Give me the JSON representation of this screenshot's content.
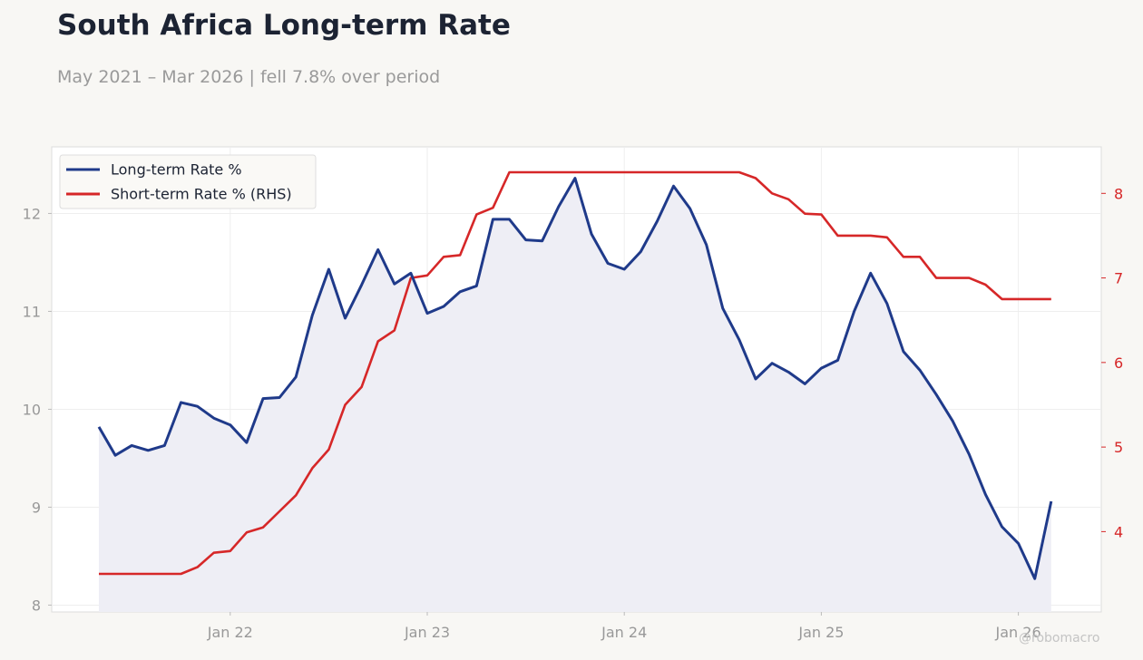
{
  "header": {
    "title": "South Africa Long-term Rate",
    "subtitle": "May 2021 – Mar 2026 | fell 7.8% over period"
  },
  "watermark": "@robomacro",
  "colors": {
    "background": "#f8f7f4",
    "plot_background": "#ffffff",
    "long_term": "#1f3a8a",
    "short_term": "#d62728",
    "fill": "#eeeef5",
    "axis_text": "#999999"
  },
  "chart_data": {
    "type": "line",
    "grid": true,
    "legend_placement": "top-left",
    "x_ticks": [
      "Jan 22",
      "Jan 23",
      "Jan 24",
      "Jan 25",
      "Jan 26"
    ],
    "y_left": {
      "ticks": [
        8,
        9,
        10,
        11,
        12
      ],
      "ylim": [
        7.93,
        12.68
      ]
    },
    "y_right": {
      "ticks": [
        4,
        5,
        6,
        7,
        8
      ],
      "ylim": [
        3.05,
        8.55
      ]
    },
    "x": [
      "2021-05",
      "2021-06",
      "2021-07",
      "2021-08",
      "2021-09",
      "2021-10",
      "2021-11",
      "2021-12",
      "2022-01",
      "2022-02",
      "2022-03",
      "2022-04",
      "2022-05",
      "2022-06",
      "2022-07",
      "2022-08",
      "2022-09",
      "2022-10",
      "2022-11",
      "2022-12",
      "2023-01",
      "2023-02",
      "2023-03",
      "2023-04",
      "2023-05",
      "2023-06",
      "2023-07",
      "2023-08",
      "2023-09",
      "2023-10",
      "2023-11",
      "2023-12",
      "2024-01",
      "2024-02",
      "2024-03",
      "2024-04",
      "2024-05",
      "2024-06",
      "2024-07",
      "2024-08",
      "2024-09",
      "2024-10",
      "2024-11",
      "2024-12",
      "2025-01",
      "2025-02",
      "2025-03",
      "2025-04",
      "2025-05",
      "2025-06",
      "2025-07",
      "2025-08",
      "2025-09",
      "2025-10",
      "2025-11",
      "2025-12",
      "2026-01",
      "2026-02",
      "2026-03"
    ],
    "series": [
      {
        "name": "Long-term Rate %",
        "axis": "left",
        "values": [
          9.82,
          9.53,
          9.63,
          9.58,
          9.63,
          10.07,
          10.03,
          9.91,
          9.84,
          9.66,
          10.11,
          10.12,
          10.33,
          10.96,
          11.43,
          10.93,
          11.27,
          11.63,
          11.28,
          11.39,
          10.98,
          11.05,
          11.2,
          11.26,
          11.94,
          11.94,
          11.73,
          11.72,
          12.07,
          12.36,
          11.79,
          11.49,
          11.43,
          11.61,
          11.92,
          12.28,
          12.05,
          11.68,
          11.03,
          10.71,
          10.31,
          10.47,
          10.38,
          10.26,
          10.42,
          10.5,
          11.0,
          11.39,
          11.08,
          10.59,
          10.4,
          10.15,
          9.88,
          9.54,
          9.13,
          8.8,
          8.63,
          8.27,
          9.06
        ]
      },
      {
        "name": "Short-term Rate % (RHS)",
        "axis": "right",
        "values": [
          3.5,
          3.5,
          3.5,
          3.5,
          3.5,
          3.5,
          3.58,
          3.75,
          3.77,
          3.99,
          4.05,
          4.24,
          4.43,
          4.75,
          4.97,
          5.5,
          5.71,
          6.25,
          6.38,
          7.0,
          7.03,
          7.25,
          7.27,
          7.75,
          7.83,
          8.25,
          8.25,
          8.25,
          8.25,
          8.25,
          8.25,
          8.25,
          8.25,
          8.25,
          8.25,
          8.25,
          8.25,
          8.25,
          8.25,
          8.25,
          8.18,
          8.0,
          7.93,
          7.76,
          7.75,
          7.5,
          7.5,
          7.5,
          7.48,
          7.25,
          7.25,
          7.0,
          7.0,
          7.0,
          6.92,
          6.75,
          6.75,
          6.75,
          6.75
        ]
      }
    ]
  }
}
